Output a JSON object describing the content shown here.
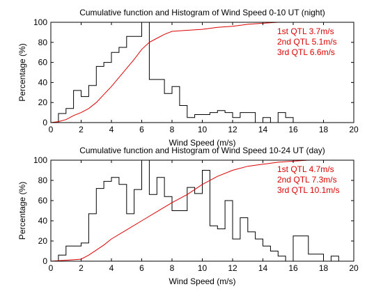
{
  "chart_data": [
    {
      "type": "line",
      "title": "Cumulative function and Histogram of Wind Speed 0-10 UT (night)",
      "xlabel": "Wind Speed (m/s)",
      "ylabel": "Percentage (%)",
      "xlim": [
        0,
        20
      ],
      "ylim": [
        0,
        100
      ],
      "xticks": [
        0,
        2,
        4,
        6,
        8,
        10,
        12,
        14,
        16,
        18,
        20
      ],
      "yticks": [
        0,
        20,
        40,
        60,
        80,
        100
      ],
      "grid": false,
      "annotations": [
        "1st QTL 3.7m/s",
        "2nd QTL 5.1m/s",
        "3rd QTL 6.6m/s"
      ],
      "series": [
        {
          "kind": "histogram-step",
          "color": "#000000",
          "bin_width": 0.5,
          "x": [
            0,
            0.5,
            1.0,
            1.5,
            2.0,
            2.5,
            3.0,
            3.5,
            4.0,
            4.5,
            5.0,
            5.5,
            6.0,
            6.5,
            7.0,
            7.5,
            8.0,
            8.5,
            9.0,
            9.5,
            10.0,
            10.5,
            11.0,
            11.5,
            12.0,
            12.5,
            13.0,
            13.5,
            14.0,
            14.5,
            15.0,
            15.5
          ],
          "y": [
            0,
            9,
            14,
            32,
            26,
            37,
            56,
            60,
            70,
            75,
            86,
            86,
            100,
            43,
            43,
            29,
            36,
            17,
            5,
            8,
            8,
            10,
            12,
            10,
            5,
            10,
            10,
            0,
            5,
            0,
            10,
            5
          ]
        },
        {
          "kind": "cumulative",
          "color": "#dd0000",
          "x": [
            0,
            0.5,
            1,
            1.5,
            2,
            2.5,
            3,
            3.5,
            4,
            4.5,
            5,
            5.5,
            6,
            6.5,
            7,
            7.5,
            8,
            9,
            10,
            11,
            12,
            13,
            14,
            15,
            16,
            20
          ],
          "y": [
            0,
            1,
            3,
            7,
            10,
            14,
            20,
            28,
            36,
            45,
            54,
            63,
            73,
            80,
            84,
            88,
            91,
            92,
            93,
            95,
            96,
            98,
            99,
            100,
            100,
            100
          ]
        }
      ]
    },
    {
      "type": "line",
      "title": "Cumulative function and Histogram of Wind Speed 10-24 UT (day)",
      "xlabel": "Wind Speed (m/s)",
      "ylabel": "Percentage (%)",
      "xlim": [
        0,
        20
      ],
      "ylim": [
        0,
        100
      ],
      "xticks": [
        0,
        2,
        4,
        6,
        8,
        10,
        12,
        14,
        16,
        18,
        20
      ],
      "yticks": [
        0,
        20,
        40,
        60,
        80,
        100
      ],
      "grid": false,
      "annotations": [
        "1st QTL 4.7m/s",
        "2nd QTL 7.3m/s",
        "3rd QTL 10.1m/s"
      ],
      "series": [
        {
          "kind": "histogram-step",
          "color": "#000000",
          "bin_width": 0.5,
          "x": [
            0,
            0.5,
            1.0,
            1.5,
            2.0,
            2.5,
            3.0,
            3.5,
            4.0,
            4.5,
            5.0,
            5.5,
            6.0,
            6.5,
            7.0,
            7.5,
            8.0,
            8.5,
            9.0,
            9.5,
            10.0,
            10.5,
            11.0,
            11.5,
            12.0,
            12.5,
            13.0,
            13.5,
            14.0,
            14.5,
            15.0,
            15.5,
            16.0,
            16.5,
            17.0,
            17.5,
            18.0,
            18.5,
            19.0
          ],
          "y": [
            0,
            6,
            15,
            15,
            18,
            47,
            72,
            79,
            83,
            76,
            47,
            71,
            100,
            66,
            83,
            64,
            50,
            50,
            73,
            67,
            90,
            35,
            32,
            60,
            22,
            43,
            29,
            22,
            15,
            10,
            5,
            0,
            25,
            25,
            7,
            7,
            0,
            5,
            0
          ]
        },
        {
          "kind": "cumulative",
          "color": "#dd0000",
          "x": [
            0,
            1,
            2,
            2.5,
            3,
            3.5,
            4,
            5,
            6,
            7,
            8,
            9,
            10,
            11,
            12,
            13,
            14,
            15,
            16,
            17,
            18,
            20
          ],
          "y": [
            0,
            1,
            2,
            6,
            11,
            16,
            22,
            31,
            40,
            49,
            58,
            66,
            76,
            84,
            90,
            94,
            96,
            98,
            99,
            100,
            100,
            100
          ]
        }
      ]
    }
  ]
}
